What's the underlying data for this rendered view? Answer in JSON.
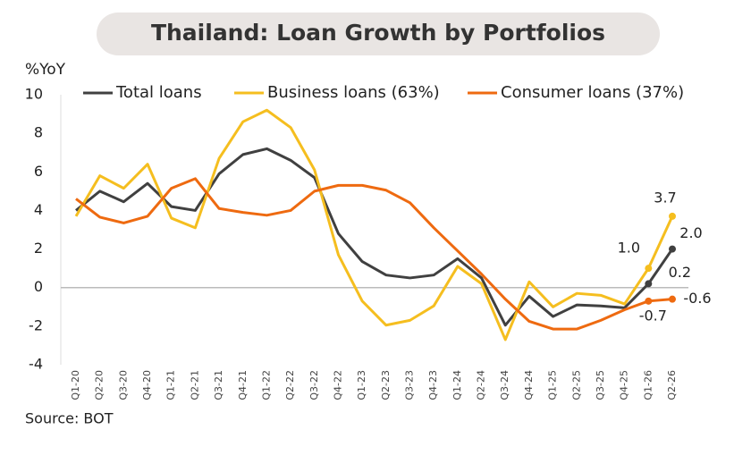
{
  "chart_data": {
    "type": "line",
    "title": "Thailand: Loan Growth by Portfolios",
    "y_label": "%YoY",
    "source": "Source: BOT",
    "categories": [
      "Q1-20",
      "Q2-20",
      "Q3-20",
      "Q4-20",
      "Q1-21",
      "Q2-21",
      "Q3-21",
      "Q4-21",
      "Q1-22",
      "Q2-22",
      "Q3-22",
      "Q4-22",
      "Q1-23",
      "Q2-23",
      "Q3-23",
      "Q4-23",
      "Q1-24",
      "Q2-24",
      "Q3-24",
      "Q4-24",
      "Q1-25",
      "Q2-25",
      "Q3-25",
      "Q4-25",
      "Q1-26",
      "Q2-26"
    ],
    "series": [
      {
        "name": "Total loans",
        "color": "#404040",
        "values": [
          4.0,
          5.0,
          4.45,
          5.4,
          4.2,
          4.0,
          5.9,
          6.9,
          7.2,
          6.6,
          5.7,
          2.8,
          1.35,
          0.65,
          0.5,
          0.65,
          1.5,
          0.5,
          -1.95,
          -0.45,
          -1.5,
          -0.9,
          -0.95,
          -1.05,
          0.2,
          2.0
        ],
        "value_labels": [
          null,
          null,
          null,
          null,
          null,
          null,
          null,
          null,
          null,
          null,
          null,
          null,
          null,
          null,
          null,
          null,
          null,
          null,
          null,
          null,
          null,
          null,
          null,
          null,
          "0.2",
          "2.0"
        ]
      },
      {
        "name": "Business loans (63%)",
        "color": "#f5be1f",
        "values": [
          3.7,
          5.8,
          5.15,
          6.4,
          3.6,
          3.1,
          6.7,
          8.6,
          9.2,
          8.3,
          6.1,
          1.7,
          -0.7,
          -1.95,
          -1.7,
          -0.95,
          1.1,
          0.2,
          -2.7,
          0.3,
          -1.0,
          -0.3,
          -0.4,
          -0.85,
          1.0,
          3.7
        ],
        "value_labels": [
          null,
          null,
          null,
          null,
          null,
          null,
          null,
          null,
          null,
          null,
          null,
          null,
          null,
          null,
          null,
          null,
          null,
          null,
          null,
          null,
          null,
          null,
          null,
          null,
          "1.0",
          "3.7"
        ]
      },
      {
        "name": "Consumer loans (37%)",
        "color": "#ee6a10",
        "values": [
          4.6,
          3.65,
          3.35,
          3.7,
          5.15,
          5.65,
          4.1,
          3.9,
          3.75,
          4.0,
          5.0,
          5.3,
          5.3,
          5.05,
          4.4,
          3.1,
          1.9,
          0.7,
          -0.6,
          -1.75,
          -2.15,
          -2.15,
          -1.7,
          -1.15,
          -0.7,
          -0.6
        ],
        "value_labels": [
          null,
          null,
          null,
          null,
          null,
          null,
          null,
          null,
          null,
          null,
          null,
          null,
          null,
          null,
          null,
          null,
          null,
          null,
          null,
          null,
          null,
          null,
          null,
          null,
          "-0.7",
          "-0.6"
        ]
      }
    ],
    "ylim": [
      -4,
      10
    ],
    "yticks": [
      -4,
      -2,
      0,
      2,
      4,
      6,
      8,
      10
    ]
  }
}
